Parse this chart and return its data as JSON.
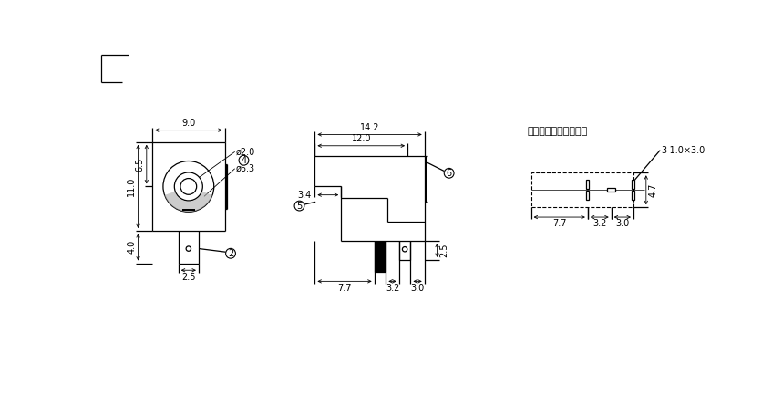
{
  "bg_color": "#ffffff",
  "line_color": "#000000",
  "fig_width": 8.37,
  "fig_height": 4.33,
  "dpi": 100,
  "title": "线路板安装尺寸示意图",
  "label_2": "2",
  "label_4": "4",
  "label_5": "5",
  "label_6": "6",
  "dim_9_0": "9.0",
  "dim_11_0": "11.0",
  "dim_6_5": "6.5",
  "dim_4_0": "4.0",
  "dim_2_5": "2.5",
  "dim_phi2_0": "ø2.0",
  "dim_phi6_3": "ø6.3",
  "dim_14_2": "14.2",
  "dim_12_0": "12.0",
  "dim_3_4": "3.4",
  "dim_7_7": "7.7",
  "dim_3_2": "3.2",
  "dim_3_0": "3.0",
  "dim_2_5b": "2.5",
  "dim_77r": "7.7",
  "dim_32r": "3.2",
  "dim_30r": "3.0",
  "dim_47r": "4.7",
  "dim_3_1x3_0": "3-1.0×3.0",
  "font_size": 7,
  "s1": 11.5,
  "s2": 11.0,
  "s3": 10.5
}
